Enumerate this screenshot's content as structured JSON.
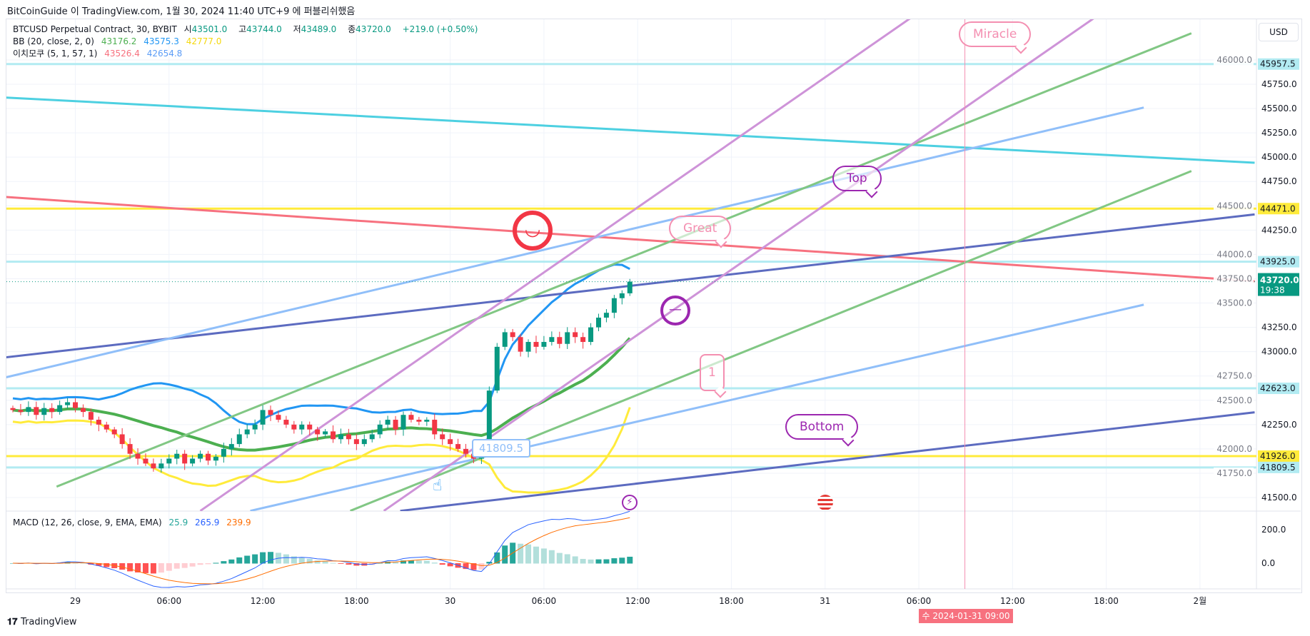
{
  "publish_line": "BitCoinGuide 이 TradingView.com, 1월 30, 2024 11:40 UTC+9 에 퍼블리쉬했음",
  "legend": {
    "symbol": "BTCUSD Perpetual Contract, 30, BYBIT",
    "open_label": "시",
    "open": "43501.0",
    "high_label": "고",
    "high": "43744.0",
    "low_label": "저",
    "low": "43489.0",
    "close_label": "종",
    "close": "43720.0",
    "change": "+219.0 (+0.50%)",
    "bb": "BB (20, close, 2, 0)",
    "bb_basis": "43176.2",
    "bb_upper": "43575.3",
    "bb_lower": "42777.0",
    "ichimoku": "이치모쿠 (5, 1, 57, 1)",
    "ichi_a": "43526.4",
    "ichi_b": "42654.8"
  },
  "macd_legend": {
    "name": "MACD (12, 26, close, 9, EMA, EMA)",
    "hist": "25.9",
    "macd": "265.9",
    "signal": "239.9"
  },
  "currency": "USD",
  "footer": "TradingView",
  "crosshair_label": "수 2024-01-31   09:00",
  "countdown": "19:38",
  "callouts": {
    "miracle": "Miracle",
    "top": "Top",
    "great": "Great",
    "one": "1",
    "bottom": "Bottom",
    "price_note": "41809.5"
  },
  "colors": {
    "up": "#089981",
    "down": "#f23645",
    "bb_basis": "#4caf50",
    "bb_upper": "#2196f3",
    "bb_lower": "#ffeb3b",
    "macd": "#2962ff",
    "signal": "#ff6d00"
  },
  "chart_data": {
    "type": "candlestick",
    "title": "BTCUSD Perpetual Contract, 30, BYBIT",
    "interval_minutes": 30,
    "start": "2024-01-28 20:00",
    "closes": [
      42400,
      42380,
      42430,
      42350,
      42420,
      42380,
      42450,
      42480,
      42420,
      42380,
      42300,
      42250,
      42200,
      42150,
      42050,
      41950,
      41900,
      41850,
      41800,
      41850,
      41900,
      41950,
      41850,
      41900,
      41950,
      41880,
      41920,
      42000,
      42050,
      42150,
      42200,
      42250,
      42400,
      42350,
      42300,
      42250,
      42200,
      42250,
      42200,
      42150,
      42180,
      42100,
      42150,
      42100,
      42050,
      42100,
      42150,
      42250,
      42300,
      42200,
      42350,
      42300,
      42280,
      42300,
      42150,
      42100,
      42050,
      42000,
      41950,
      41900,
      41980,
      42600,
      43050,
      43200,
      43150,
      43000,
      43100,
      43050,
      43100,
      43150,
      43080,
      43200,
      43150,
      43100,
      43250,
      43350,
      43400,
      43550,
      43600,
      43720
    ],
    "ylim": [
      41400,
      46050
    ],
    "price_ticks": [
      46000,
      45750,
      45500,
      45250,
      45000,
      44750,
      44500,
      44250,
      44000,
      43750,
      43500,
      43250,
      43000,
      42750,
      42500,
      42250,
      42000,
      41750,
      41500
    ],
    "macd_ticks": [
      200,
      0
    ],
    "time_ticks": [
      {
        "bar": 8,
        "label": "29"
      },
      {
        "bar": 20,
        "label": "06:00"
      },
      {
        "bar": 32,
        "label": "12:00"
      },
      {
        "bar": 44,
        "label": "18:00"
      },
      {
        "bar": 56,
        "label": "30"
      },
      {
        "bar": 68,
        "label": "06:00"
      },
      {
        "bar": 80,
        "label": "12:00"
      },
      {
        "bar": 92,
        "label": "18:00"
      },
      {
        "bar": 104,
        "label": "31"
      },
      {
        "bar": 116,
        "label": "06:00"
      },
      {
        "bar": 128,
        "label": "12:00"
      },
      {
        "bar": 140,
        "label": "18:00"
      },
      {
        "bar": 152,
        "label": "2월"
      }
    ],
    "price_tags": [
      {
        "price": 45957.5,
        "label": "45957.5",
        "color": "#b2ebf2"
      },
      {
        "price": 44471,
        "label": "44471.0",
        "color": "#ffeb3b"
      },
      {
        "price": 43925,
        "label": "43925.0",
        "color": "#b2ebf2"
      },
      {
        "price": 42623,
        "label": "42623.0",
        "color": "#b2ebf2"
      },
      {
        "price": 41926,
        "label": "41926.0",
        "color": "#ffeb3b"
      },
      {
        "price": 41809.5,
        "label": "41809.5",
        "color": "#b2ebf2"
      }
    ],
    "last_price": {
      "price": 43720,
      "label": "43720.0"
    },
    "hlines": [
      {
        "price": 45957.5,
        "color": "#b2ebf2"
      },
      {
        "price": 44471,
        "color": "#ffeb3b"
      },
      {
        "price": 43925,
        "color": "#b2ebf2"
      },
      {
        "price": 42623,
        "color": "#b2ebf2"
      },
      {
        "price": 41926,
        "color": "#ffeb3b"
      },
      {
        "price": 41809.5,
        "color": "#b2ebf2"
      }
    ],
    "trendlines": [
      {
        "name": "cyan-resistance",
        "b1": -0.9,
        "p1": 45613,
        "b2": 159,
        "p2": 44943,
        "color": "#4dd0e1"
      },
      {
        "name": "red-resistance",
        "b1": -0.9,
        "p1": 44591,
        "b2": 159,
        "p2": 43724,
        "color": "#f7717f"
      },
      {
        "name": "navy-upper",
        "b1": -0.9,
        "p1": 42942,
        "b2": 159,
        "p2": 44411,
        "color": "#5c6bc0"
      },
      {
        "name": "navy-lower",
        "b1": 49.6,
        "p1": 41363,
        "b2": 159,
        "p2": 42376,
        "color": "#5c6bc0"
      },
      {
        "name": "blue-channel-upper",
        "b1": -0.9,
        "p1": 42736,
        "b2": 144.8,
        "p2": 45510,
        "color": "#90bff9"
      },
      {
        "name": "blue-channel-lower",
        "b1": 30.4,
        "p1": 41363,
        "b2": 144.8,
        "p2": 43483,
        "color": "#90bff9"
      },
      {
        "name": "green-channel-upper",
        "b1": 5.6,
        "p1": 41612,
        "b2": 150.9,
        "p2": 46274,
        "color": "#81c784"
      },
      {
        "name": "green-channel-lower",
        "b1": 43.2,
        "p1": 41363,
        "b2": 150.9,
        "p2": 44857,
        "color": "#81c784"
      },
      {
        "name": "purple-channel-a",
        "b1": 24,
        "p1": 41363,
        "b2": 114.9,
        "p2": 46428,
        "color": "#ce93d8"
      },
      {
        "name": "purple-channel-b",
        "b1": 47.5,
        "p1": 41363,
        "b2": 138.4,
        "p2": 46428,
        "color": "#ce93d8"
      }
    ],
    "vline_bar": 121.9
  }
}
